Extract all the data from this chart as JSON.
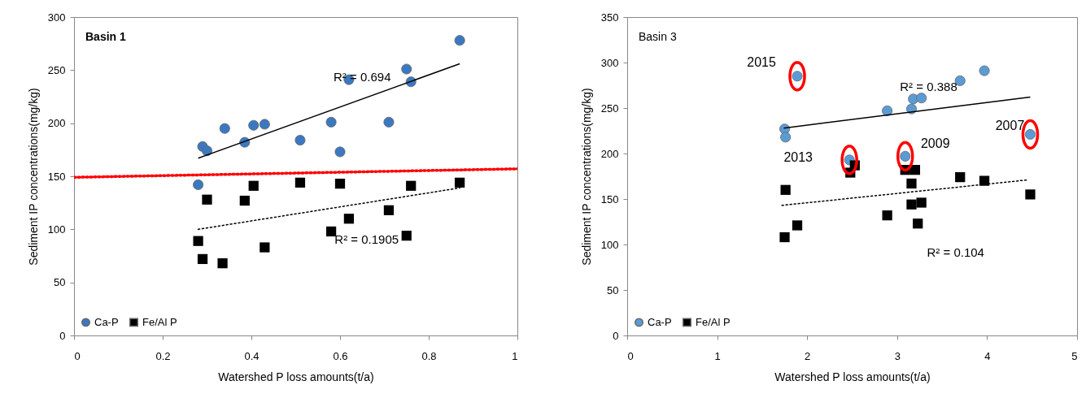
{
  "chart_data": [
    {
      "type": "scatter",
      "title": "Basin 1",
      "xlabel": "Watershed P loss amounts(t/a)",
      "ylabel": "Sediment IP concentrations(mg/kg)",
      "xlim": [
        0,
        1
      ],
      "xticks": [
        0,
        0.2,
        0.4,
        0.6,
        0.8,
        1
      ],
      "ylim": [
        0,
        300
      ],
      "yticks": [
        0,
        50,
        100,
        150,
        200,
        250,
        300
      ],
      "grid": false,
      "legend": "bottom left",
      "series": [
        {
          "name": "Ca-P",
          "marker": "circle",
          "color": "#3b78c0",
          "x": [
            0.28,
            0.29,
            0.3,
            0.34,
            0.385,
            0.405,
            0.43,
            0.51,
            0.58,
            0.6,
            0.62,
            0.71,
            0.75,
            0.76,
            0.87
          ],
          "values": [
            142,
            178,
            174,
            195,
            182,
            198,
            199,
            184,
            201,
            173,
            241,
            201,
            251,
            239,
            278
          ]
        },
        {
          "name": "Fe/Al P",
          "marker": "square",
          "color": "#000000",
          "x": [
            0.28,
            0.29,
            0.3,
            0.335,
            0.385,
            0.405,
            0.43,
            0.51,
            0.58,
            0.6,
            0.62,
            0.71,
            0.75,
            0.76,
            0.87
          ],
          "values": [
            89,
            72,
            128,
            68,
            127,
            141,
            83,
            144,
            98,
            143,
            110,
            118,
            94,
            141,
            144
          ]
        },
        {
          "type": "line",
          "line_style": "solid",
          "color": "#000000",
          "x": [
            0.28,
            0.87
          ],
          "values": [
            167,
            256
          ]
        },
        {
          "type": "line",
          "line_style": "dotted",
          "color": "#000000",
          "x": [
            0.28,
            0.87
          ],
          "values": [
            100,
            139
          ]
        },
        {
          "type": "line",
          "line_style": "dotted",
          "color": "#ff0000",
          "x": [
            0,
            1
          ],
          "values": [
            149,
            157
          ]
        }
      ],
      "annotations": [
        "R² = 0.694",
        "R² = 0.1905"
      ]
    },
    {
      "type": "scatter",
      "title": "Basin 3",
      "xlabel": "Watershed P loss amounts(t/a)",
      "ylabel": "Sediment IP concentrations(mg/kg)",
      "xlim": [
        0,
        5
      ],
      "xticks": [
        0,
        1,
        2,
        3,
        4,
        5
      ],
      "ylim": [
        0,
        350
      ],
      "yticks": [
        0,
        50,
        100,
        150,
        200,
        250,
        300,
        350
      ],
      "grid": false,
      "legend": "bottom left",
      "series": [
        {
          "name": "Ca-P",
          "marker": "circle",
          "color": "#5b9bd5",
          "x": [
            1.75,
            1.76,
            1.89,
            2.47,
            2.89,
            3.09,
            3.16,
            3.18,
            3.27,
            3.7,
            3.97,
            4.48
          ],
          "values": [
            227,
            218,
            285,
            193,
            247,
            197,
            249,
            260,
            261,
            280,
            291,
            221
          ]
        },
        {
          "name": "Fe/Al P",
          "marker": "square",
          "color": "#000000",
          "x": [
            1.75,
            1.76,
            1.89,
            2.48,
            2.53,
            2.89,
            3.09,
            3.16,
            3.16,
            3.2,
            3.23,
            3.27,
            3.7,
            3.97,
            4.48
          ],
          "values": [
            108,
            160,
            121,
            179,
            187,
            132,
            182,
            167,
            144,
            182,
            123,
            146,
            174,
            170,
            155
          ]
        },
        {
          "type": "line",
          "line_style": "solid",
          "color": "#000000",
          "x": [
            1.74,
            4.48
          ],
          "values": [
            228,
            262
          ]
        },
        {
          "type": "line",
          "line_style": "dotted",
          "color": "#000000",
          "x": [
            1.72,
            4.45
          ],
          "values": [
            143,
            171
          ]
        }
      ],
      "annotations": [
        "R² = 0.388",
        "R² = 0.104",
        {
          "text": "2015",
          "x": 1.89,
          "y": 285
        },
        {
          "text": "2013",
          "x": 2.47,
          "y": 193
        },
        {
          "text": "2009",
          "x": 3.09,
          "y": 197
        },
        {
          "text": "2007",
          "x": 4.48,
          "y": 221
        }
      ]
    }
  ]
}
